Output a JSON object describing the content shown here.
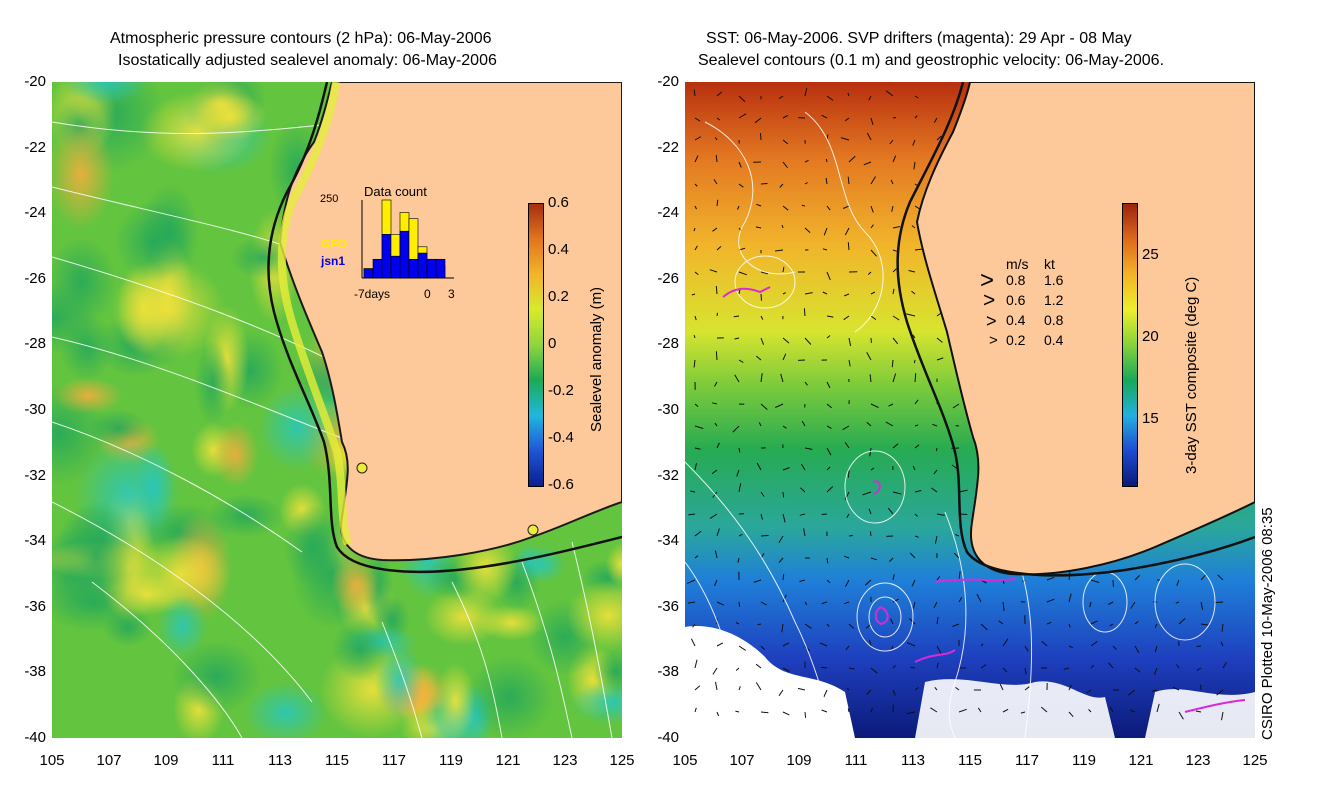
{
  "left_panel": {
    "title_line1": "Atmospheric pressure contours (2 hPa): 06-May-2006",
    "title_line2": "Isostatically adjusted sealevel anomaly: 06-May-2006",
    "colorbar": {
      "label": "Sealevel anomaly (m)",
      "ticks": [
        "0.6",
        "0.4",
        "0.2",
        "0",
        "-0.2",
        "-0.4",
        "-0.6"
      ],
      "colors": [
        "#0a1f8f",
        "#1f55d6",
        "#20b7df",
        "#1bab55",
        "#8fd63d",
        "#d7ea2c",
        "#f3b429",
        "#e2751e",
        "#a62e12"
      ]
    },
    "inset": {
      "title": "Data count",
      "ymax_label": "250",
      "series": [
        {
          "name": "GFO",
          "color": "#ffee00"
        },
        {
          "name": "jsn1",
          "color": "#0000ee"
        }
      ],
      "xlabel_left": "-7days",
      "xlabel_mid": "0",
      "xlabel_right": "3",
      "bars_gfo": [
        30,
        30,
        250,
        140,
        210,
        190,
        100,
        60,
        40
      ],
      "bars_jsn1": [
        30,
        60,
        140,
        70,
        150,
        60,
        80,
        60,
        60
      ]
    }
  },
  "right_panel": {
    "title_line1": "SST: 06-May-2006. SVP drifters (magenta): 29 Apr - 08 May",
    "title_line2": "Sealevel contours (0.1 m) and geostrophic velocity: 06-May-2006.",
    "colorbar": {
      "label": "3-day SST composite (deg C)",
      "ticks": [
        "25",
        "20",
        "15"
      ],
      "colors": [
        "#0a1a78",
        "#1d4bd0",
        "#23b0e0",
        "#18a858",
        "#86d23b",
        "#ecef2c",
        "#f3b427",
        "#dd6a1d",
        "#9c230d"
      ]
    },
    "velocity_legend": {
      "header_ms": "m/s",
      "header_kt": "kt",
      "rows": [
        {
          "ms": "0.8",
          "kt": "1.6"
        },
        {
          "ms": "0.6",
          "kt": "1.2"
        },
        {
          "ms": "0.4",
          "kt": "0.8"
        },
        {
          "ms": "0.2",
          "kt": "0.4"
        }
      ]
    },
    "credit": "CSIRO Plotted 10-May-2006 08:35"
  },
  "axes": {
    "lat_ticks": [
      "-20",
      "-22",
      "-24",
      "-26",
      "-28",
      "-30",
      "-32",
      "-34",
      "-36",
      "-38",
      "-40"
    ],
    "lon_ticks": [
      "105",
      "107",
      "109",
      "111",
      "113",
      "115",
      "117",
      "119",
      "121",
      "123",
      "125"
    ]
  },
  "colors": {
    "land": "#fdc89a",
    "coast": "#000000",
    "contour": "#ffffff",
    "drifter": "#d82ad8"
  }
}
